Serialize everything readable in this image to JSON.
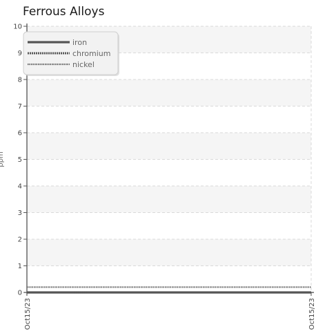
{
  "chart_data": {
    "type": "line",
    "title": "Ferrous Alloys",
    "xlabel": "",
    "ylabel": "ppm",
    "x": [
      "Oct15/23",
      "Oct15/23"
    ],
    "series": [
      {
        "name": "iron",
        "values": [
          0,
          0
        ],
        "color": "#555555",
        "style": "solid"
      },
      {
        "name": "chromium",
        "values": [
          0,
          0
        ],
        "color": "#555555",
        "style": "dense-dotted"
      },
      {
        "name": "nickel",
        "values": [
          0.2,
          0.2
        ],
        "color": "#666666",
        "style": "dotted"
      }
    ],
    "ylim": [
      0,
      10
    ],
    "yticks": [
      "0",
      "1",
      "2",
      "3",
      "4",
      "5",
      "6",
      "7",
      "8",
      "9",
      "10"
    ],
    "xtick_labels": [
      "Oct15/23",
      "Oct15/23"
    ],
    "grid": true,
    "alternating_bands": true,
    "legend_position": "top-left"
  }
}
